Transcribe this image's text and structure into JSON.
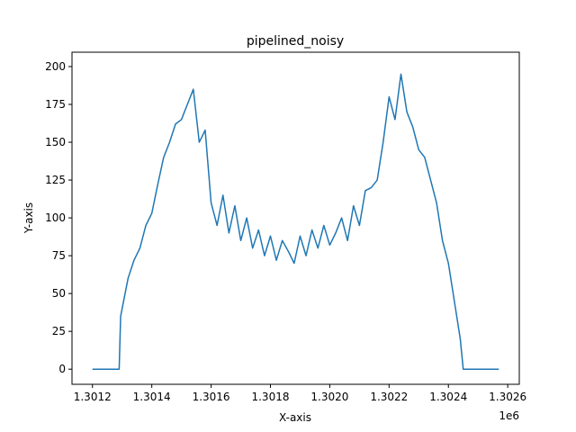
{
  "chart_data": {
    "type": "line",
    "title": "pipelined_noisy",
    "xlabel": "X-axis",
    "ylabel": "Y-axis",
    "x_offset_label": "1e6",
    "series": [
      {
        "color": "#1f77b4",
        "x": [
          1301200,
          1301280,
          1301290,
          1301295,
          1301300,
          1301320,
          1301340,
          1301360,
          1301380,
          1301400,
          1301420,
          1301440,
          1301460,
          1301480,
          1301500,
          1301520,
          1301540,
          1301560,
          1301580,
          1301600,
          1301620,
          1301640,
          1301660,
          1301680,
          1301700,
          1301720,
          1301740,
          1301760,
          1301780,
          1301800,
          1301820,
          1301840,
          1301860,
          1301880,
          1301900,
          1301920,
          1301940,
          1301960,
          1301980,
          1302000,
          1302020,
          1302040,
          1302060,
          1302080,
          1302100,
          1302120,
          1302140,
          1302160,
          1302180,
          1302200,
          1302220,
          1302240,
          1302260,
          1302280,
          1302300,
          1302320,
          1302340,
          1302360,
          1302380,
          1302400,
          1302420,
          1302440,
          1302450,
          1302570
        ],
        "values": [
          0,
          0,
          0,
          35,
          40,
          60,
          72,
          80,
          95,
          103,
          122,
          140,
          150,
          162,
          165,
          175,
          185,
          150,
          158,
          110,
          95,
          115,
          90,
          108,
          85,
          100,
          80,
          92,
          75,
          88,
          72,
          85,
          78,
          70,
          88,
          75,
          92,
          80,
          95,
          82,
          90,
          100,
          85,
          108,
          95,
          118,
          120,
          125,
          150,
          180,
          165,
          195,
          170,
          160,
          145,
          140,
          125,
          110,
          85,
          70,
          45,
          20,
          0,
          0
        ]
      }
    ],
    "xlim": [
      1301131,
      1302639
    ],
    "ylim": [
      -10,
      209.5
    ],
    "xticks": [
      {
        "value": 1301200,
        "label": "1.3012"
      },
      {
        "value": 1301400,
        "label": "1.3014"
      },
      {
        "value": 1301600,
        "label": "1.3016"
      },
      {
        "value": 1301800,
        "label": "1.3018"
      },
      {
        "value": 1302000,
        "label": "1.3020"
      },
      {
        "value": 1302200,
        "label": "1.3022"
      },
      {
        "value": 1302400,
        "label": "1.3024"
      },
      {
        "value": 1302600,
        "label": "1.3026"
      }
    ],
    "yticks": [
      0,
      25,
      50,
      75,
      100,
      125,
      150,
      175,
      200
    ]
  }
}
